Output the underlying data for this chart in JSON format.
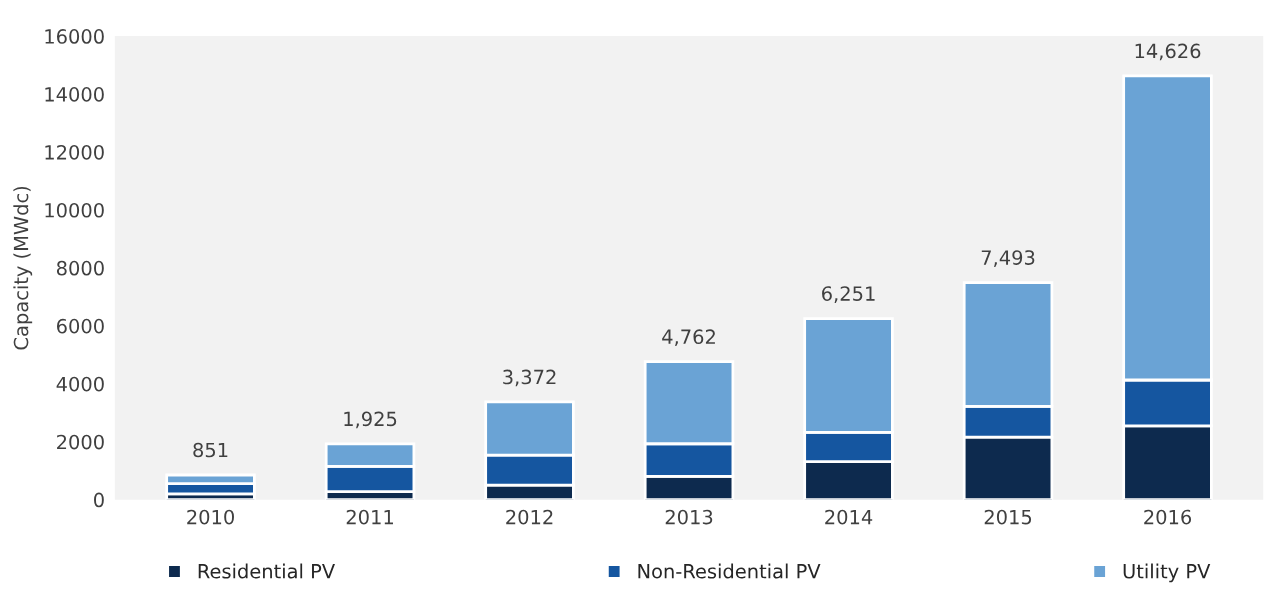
{
  "chart_data": {
    "type": "bar",
    "stacked": true,
    "ylabel": "Capacity (MWdc)",
    "categories": [
      "2010",
      "2011",
      "2012",
      "2013",
      "2014",
      "2015",
      "2016"
    ],
    "series": [
      {
        "name": "Residential PV",
        "color": "#0d2a4e",
        "values": [
          200,
          280,
          500,
          800,
          1310,
          2160,
          2550
        ]
      },
      {
        "name": "Non-Residential PV",
        "color": "#1556a0",
        "values": [
          350,
          870,
          1040,
          1130,
          1010,
          1060,
          1580
        ]
      },
      {
        "name": "Utility PV",
        "color": "#6aa3d5",
        "values": [
          301,
          775,
          1832,
          2832,
          3931,
          4273,
          10496
        ]
      }
    ],
    "totals": [
      "851",
      "1,925",
      "3,372",
      "4,762",
      "6,251",
      "7,493",
      "14,626"
    ],
    "ylim": [
      0,
      16000
    ],
    "yticks": [
      0,
      2000,
      4000,
      6000,
      8000,
      10000,
      12000,
      14000,
      16000
    ],
    "grid": false,
    "legend": "bottom"
  }
}
